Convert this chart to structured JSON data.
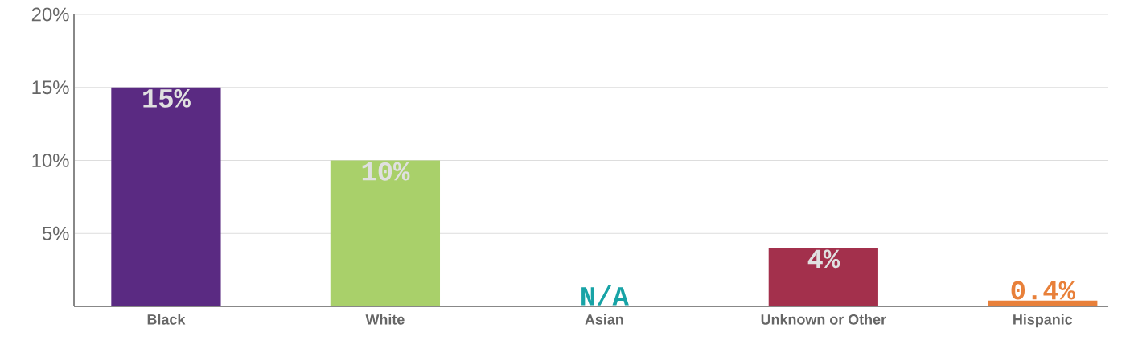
{
  "chart_data": {
    "type": "bar",
    "categories": [
      "Black",
      "White",
      "Asian",
      "Unknown or Other",
      "Hispanic"
    ],
    "values": [
      15,
      10,
      null,
      4,
      0.4
    ],
    "colors": [
      "#5a2a82",
      "#a9d06a",
      "#17a3a6",
      "#a3304c",
      "#e8803a"
    ],
    "value_labels": [
      "15%",
      "10%",
      "N/A",
      "4%",
      "0.4%"
    ],
    "ylim": [
      0,
      20
    ],
    "yticks": [
      {
        "value": 5,
        "label": "5%"
      },
      {
        "value": 10,
        "label": "10%"
      },
      {
        "value": 15,
        "label": "15%"
      },
      {
        "value": 20,
        "label": "20%"
      }
    ],
    "grid": "y"
  }
}
